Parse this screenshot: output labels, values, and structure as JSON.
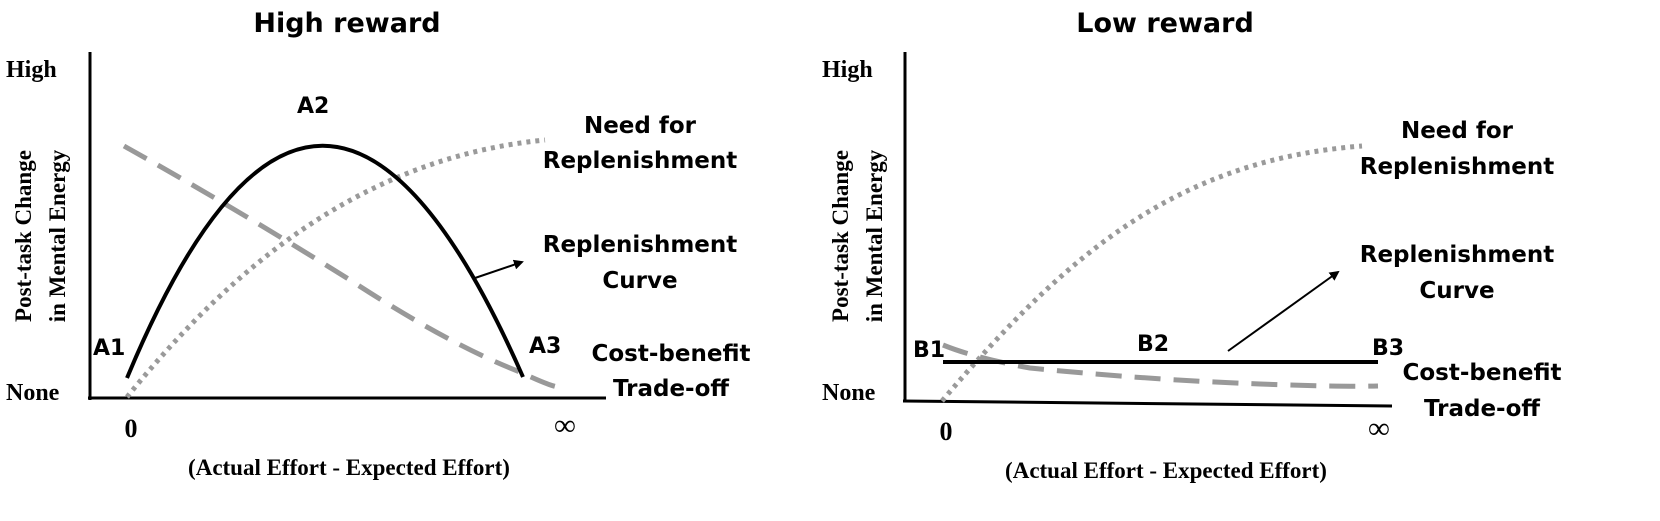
{
  "panels": [
    {
      "title": "High reward",
      "y_axis": {
        "line1": "Post-task Change",
        "line2": "in Mental Energy",
        "high": "High",
        "none": "None"
      },
      "x_axis": {
        "zero": "0",
        "infinity": "∞",
        "label": "(Actual Effort -  Expected Effort)"
      },
      "points": {
        "p1": "A1",
        "p2": "A2",
        "p3": "A3"
      },
      "curves": {
        "need_line1": "Need for",
        "need_line2": "Replenishment",
        "replenish_line1": "Replenishment",
        "replenish_line2": "Curve",
        "tradeoff_line1": "Cost-benefit",
        "tradeoff_line2": "Trade-off"
      }
    },
    {
      "title": "Low reward",
      "y_axis": {
        "line1": "Post-task Change",
        "line2": "in Mental Energy",
        "high": "High",
        "none": "None"
      },
      "x_axis": {
        "zero": "0",
        "infinity": "∞",
        "label": "(Actual Effort -  Expected Effort)"
      },
      "points": {
        "p1": "B1",
        "p2": "B2",
        "p3": "B3"
      },
      "curves": {
        "need_line1": "Need for",
        "need_line2": "Replenishment",
        "replenish_line1": "Replenishment",
        "replenish_line2": "Curve",
        "tradeoff_line1": "Cost-benefit",
        "tradeoff_line2": "Trade-off"
      }
    }
  ],
  "styles": {
    "axis_color": "#000000",
    "replenishment_curve_color": "#000000",
    "tradeoff_curve_color": "#999999",
    "need_curve_color": "#9a9a9a"
  }
}
